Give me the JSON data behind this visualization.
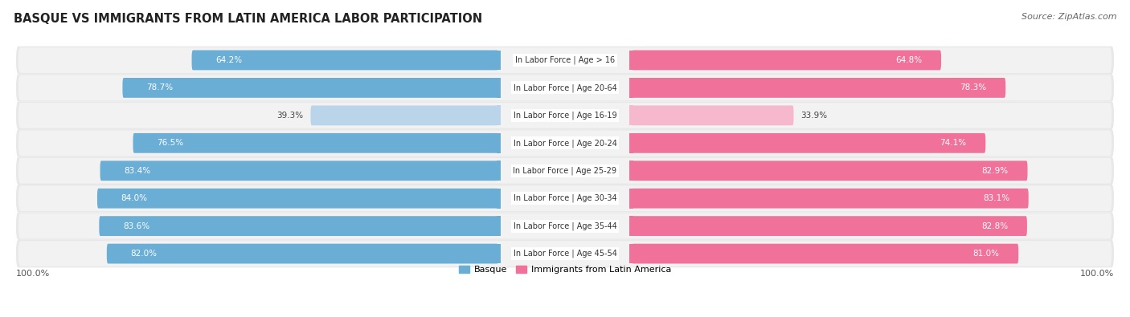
{
  "title": "BASQUE VS IMMIGRANTS FROM LATIN AMERICA LABOR PARTICIPATION",
  "source": "Source: ZipAtlas.com",
  "categories": [
    "In Labor Force | Age > 16",
    "In Labor Force | Age 20-64",
    "In Labor Force | Age 16-19",
    "In Labor Force | Age 20-24",
    "In Labor Force | Age 25-29",
    "In Labor Force | Age 30-34",
    "In Labor Force | Age 35-44",
    "In Labor Force | Age 45-54"
  ],
  "basque_values": [
    64.2,
    78.7,
    39.3,
    76.5,
    83.4,
    84.0,
    83.6,
    82.0
  ],
  "immigrant_values": [
    64.8,
    78.3,
    33.9,
    74.1,
    82.9,
    83.1,
    82.8,
    81.0
  ],
  "basque_color": "#6aaed6",
  "basque_color_light": "#bad4ea",
  "immigrant_color": "#f0719a",
  "immigrant_color_light": "#f5b8cc",
  "row_bg_color": "#e8e8e8",
  "row_bg_inner": "#f2f2f2",
  "max_value": 100.0,
  "legend_basque": "Basque",
  "legend_immigrant": "Immigrants from Latin America",
  "axis_label": "100.0%",
  "title_fontsize": 10.5,
  "source_fontsize": 8,
  "bar_label_fontsize": 7.5,
  "cat_label_fontsize": 7,
  "legend_fontsize": 8
}
